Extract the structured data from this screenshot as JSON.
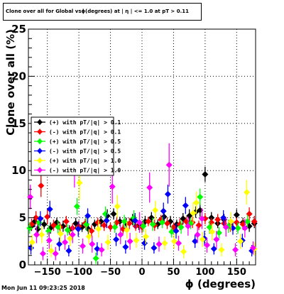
{
  "title": "Clone  over all for Global vsϕ(degrees) at | η | <= 1.0 at pT > 0.11",
  "timestamp": "Mon Jun 11 09:23:25 2018",
  "chart_data": {
    "type": "scatter",
    "xlabel": "ϕ (degrees)",
    "ylabel": "Clone  over all (%)",
    "xlim": [
      -180,
      180
    ],
    "ylim": [
      0,
      25
    ],
    "x_ticks": [
      -150,
      -100,
      -50,
      0,
      50,
      100,
      150
    ],
    "x_tick_labels": [
      "−150",
      "−100",
      "−50",
      "0",
      "50",
      "100",
      "150"
    ],
    "y_ticks": [
      0,
      5,
      10,
      15,
      20,
      25
    ],
    "grid": true,
    "legend_position": "left",
    "series": [
      {
        "name": "(+) with pT/|q| > 0.1",
        "color": "#000000",
        "marker": "diamond",
        "points": [
          [
            -175,
            4.1,
            0.5
          ],
          [
            -170,
            4.6,
            0.6
          ],
          [
            -165,
            3.8,
            0.7
          ],
          [
            -155,
            4.3,
            0.5
          ],
          [
            -145,
            3.9,
            0.6
          ],
          [
            -135,
            4.5,
            0.5
          ],
          [
            -125,
            4.1,
            0.6
          ],
          [
            -115,
            3.7,
            0.5
          ],
          [
            -105,
            4.4,
            0.6
          ],
          [
            -95,
            4.0,
            0.5
          ],
          [
            -85,
            3.8,
            0.6
          ],
          [
            -75,
            4.3,
            0.5
          ],
          [
            -65,
            4.6,
            0.6
          ],
          [
            -55,
            5.2,
            0.7
          ],
          [
            -45,
            5.4,
            0.6
          ],
          [
            -35,
            4.6,
            0.5
          ],
          [
            -25,
            4.4,
            0.6
          ],
          [
            -15,
            4.8,
            0.6
          ],
          [
            -5,
            4.2,
            0.5
          ],
          [
            5,
            4.6,
            0.6
          ],
          [
            15,
            5.0,
            0.6
          ],
          [
            25,
            4.3,
            0.5
          ],
          [
            35,
            5.1,
            0.7
          ],
          [
            45,
            4.6,
            0.6
          ],
          [
            55,
            4.3,
            0.5
          ],
          [
            65,
            4.9,
            0.6
          ],
          [
            75,
            5.2,
            0.7
          ],
          [
            85,
            5.6,
            0.6
          ],
          [
            92,
            5.8,
            0.7
          ],
          [
            100,
            9.6,
            0.8
          ],
          [
            110,
            5.0,
            0.6
          ],
          [
            120,
            4.4,
            0.5
          ],
          [
            130,
            4.8,
            0.6
          ],
          [
            140,
            4.2,
            0.5
          ],
          [
            150,
            5.3,
            0.6
          ],
          [
            160,
            4.5,
            0.5
          ],
          [
            170,
            4.1,
            0.6
          ],
          [
            178,
            4.4,
            0.5
          ]
        ]
      },
      {
        "name": "(-) with pT/|q| > 0.1",
        "color": "#ff0000",
        "marker": "diamond",
        "points": [
          [
            -175,
            4.3,
            0.6
          ],
          [
            -168,
            5.0,
            0.7
          ],
          [
            -160,
            8.4,
            1.2
          ],
          [
            -150,
            5.1,
            0.8
          ],
          [
            -140,
            4.2,
            0.6
          ],
          [
            -130,
            4.0,
            0.5
          ],
          [
            -120,
            4.6,
            0.6
          ],
          [
            -110,
            3.9,
            0.5
          ],
          [
            -100,
            4.1,
            0.6
          ],
          [
            -90,
            4.4,
            0.5
          ],
          [
            -80,
            3.6,
            0.6
          ],
          [
            -70,
            4.5,
            0.5
          ],
          [
            -60,
            4.2,
            0.6
          ],
          [
            -50,
            4.0,
            0.5
          ],
          [
            -40,
            4.5,
            0.6
          ],
          [
            -30,
            3.8,
            0.5
          ],
          [
            -20,
            4.4,
            0.6
          ],
          [
            -10,
            4.1,
            0.5
          ],
          [
            0,
            4.0,
            0.6
          ],
          [
            10,
            4.6,
            0.5
          ],
          [
            20,
            4.2,
            0.6
          ],
          [
            30,
            4.8,
            0.5
          ],
          [
            40,
            4.4,
            0.6
          ],
          [
            50,
            4.0,
            0.5
          ],
          [
            60,
            4.3,
            0.6
          ],
          [
            70,
            4.6,
            0.5
          ],
          [
            80,
            4.5,
            0.6
          ],
          [
            90,
            4.2,
            0.5
          ],
          [
            100,
            4.9,
            0.6
          ],
          [
            110,
            4.5,
            0.5
          ],
          [
            120,
            4.8,
            0.6
          ],
          [
            130,
            4.4,
            0.5
          ],
          [
            140,
            4.1,
            0.6
          ],
          [
            150,
            4.5,
            0.5
          ],
          [
            160,
            4.3,
            0.6
          ],
          [
            170,
            5.4,
            0.7
          ],
          [
            178,
            4.6,
            0.6
          ]
        ]
      },
      {
        "name": "(+) with pT/|q| > 0.5",
        "color": "#00ff00",
        "marker": "diamond",
        "points": [
          [
            -178,
            3.9,
            0.6
          ],
          [
            -163,
            4.5,
            0.7
          ],
          [
            -148,
            3.6,
            0.6
          ],
          [
            -133,
            4.0,
            0.7
          ],
          [
            -118,
            3.7,
            0.6
          ],
          [
            -103,
            6.2,
            0.9
          ],
          [
            -88,
            4.3,
            0.7
          ],
          [
            -73,
            0.7,
            0.6
          ],
          [
            -58,
            5.4,
            0.8
          ],
          [
            -43,
            4.0,
            0.6
          ],
          [
            -28,
            4.6,
            0.7
          ],
          [
            -13,
            5.0,
            0.8
          ],
          [
            2,
            4.1,
            0.6
          ],
          [
            17,
            4.3,
            0.7
          ],
          [
            32,
            4.5,
            0.6
          ],
          [
            47,
            3.5,
            0.6
          ],
          [
            62,
            4.0,
            0.7
          ],
          [
            77,
            4.4,
            0.6
          ],
          [
            92,
            7.2,
            0.9
          ],
          [
            107,
            4.0,
            0.7
          ],
          [
            122,
            3.4,
            0.6
          ],
          [
            137,
            4.1,
            0.7
          ],
          [
            152,
            3.9,
            0.6
          ],
          [
            167,
            4.6,
            0.7
          ]
        ]
      },
      {
        "name": "(-) with pT/|q| > 0.5",
        "color": "#0000ff",
        "marker": "diamond",
        "points": [
          [
            -176,
            1.8,
            0.7
          ],
          [
            -161,
            4.9,
            0.8
          ],
          [
            -146,
            5.9,
            0.9
          ],
          [
            -131,
            2.2,
            0.7
          ],
          [
            -116,
            1.5,
            0.6
          ],
          [
            -101,
            3.8,
            0.8
          ],
          [
            -86,
            5.2,
            0.8
          ],
          [
            -71,
            1.7,
            0.7
          ],
          [
            -56,
            4.7,
            0.8
          ],
          [
            -41,
            2.7,
            0.7
          ],
          [
            -26,
            1.9,
            0.7
          ],
          [
            -11,
            4.7,
            0.8
          ],
          [
            4,
            2.3,
            0.7
          ],
          [
            19,
            1.8,
            0.6
          ],
          [
            34,
            5.7,
            0.9
          ],
          [
            41,
            7.5,
            1.0
          ],
          [
            54,
            3.6,
            0.8
          ],
          [
            69,
            6.3,
            0.9
          ],
          [
            84,
            2.5,
            0.7
          ],
          [
            99,
            2.8,
            0.8
          ],
          [
            114,
            1.7,
            0.6
          ],
          [
            129,
            5.0,
            0.8
          ],
          [
            144,
            3.9,
            0.7
          ],
          [
            159,
            2.6,
            0.7
          ],
          [
            174,
            1.5,
            0.6
          ]
        ]
      },
      {
        "name": "(+) with pT/|q| > 1.0",
        "color": "#ffff00",
        "marker": "diamond",
        "points": [
          [
            -174,
            2.4,
            0.8
          ],
          [
            -159,
            3.2,
            0.9
          ],
          [
            -144,
            1.5,
            0.7
          ],
          [
            -129,
            3.3,
            0.9
          ],
          [
            -114,
            2.8,
            0.8
          ],
          [
            -99,
            8.7,
            1.8
          ],
          [
            -84,
            3.0,
            0.8
          ],
          [
            -69,
            3.8,
            0.9
          ],
          [
            -54,
            2.4,
            0.8
          ],
          [
            -39,
            6.2,
            1.2
          ],
          [
            -24,
            3.7,
            0.9
          ],
          [
            -9,
            2.6,
            0.8
          ],
          [
            6,
            3.0,
            0.8
          ],
          [
            21,
            5.8,
            1.0
          ],
          [
            36,
            2.3,
            0.7
          ],
          [
            51,
            2.5,
            0.8
          ],
          [
            66,
            1.4,
            0.7
          ],
          [
            81,
            5.5,
            1.1
          ],
          [
            86,
            6.6,
            1.2
          ],
          [
            96,
            2.7,
            0.8
          ],
          [
            111,
            3.5,
            0.9
          ],
          [
            126,
            1.6,
            0.7
          ],
          [
            141,
            4.6,
            1.0
          ],
          [
            156,
            2.5,
            0.8
          ],
          [
            166,
            7.7,
            1.3
          ],
          [
            178,
            1.7,
            0.7
          ]
        ]
      },
      {
        "name": "(-) with pT/|q| > 1.0",
        "color": "#ff00ff",
        "marker": "diamond",
        "points": [
          [
            -177,
            7.2,
            1.3
          ],
          [
            -167,
            3.2,
            0.9
          ],
          [
            -157,
            1.2,
            0.7
          ],
          [
            -147,
            2.6,
            0.9
          ],
          [
            -137,
            1.2,
            0.7
          ],
          [
            -122,
            2.4,
            0.8
          ],
          [
            -110,
            3.2,
            0.9
          ],
          [
            -107,
            10.7,
            2.5
          ],
          [
            -94,
            2.0,
            0.8
          ],
          [
            -79,
            2.2,
            0.9
          ],
          [
            -64,
            1.6,
            0.7
          ],
          [
            -47,
            8.3,
            1.8
          ],
          [
            -34,
            3.2,
            1.0
          ],
          [
            -19,
            2.5,
            0.9
          ],
          [
            -4,
            4.5,
            1.1
          ],
          [
            12,
            8.2,
            1.6
          ],
          [
            27,
            2.2,
            0.8
          ],
          [
            43,
            10.6,
            2.3
          ],
          [
            58,
            2.3,
            0.8
          ],
          [
            73,
            4.1,
            1.0
          ],
          [
            88,
            3.2,
            0.9
          ],
          [
            95,
            4.9,
            1.1
          ],
          [
            103,
            2.1,
            0.8
          ],
          [
            118,
            2.7,
            0.9
          ],
          [
            133,
            4.0,
            1.0
          ],
          [
            148,
            1.6,
            0.7
          ],
          [
            163,
            3.9,
            1.0
          ],
          [
            176,
            1.8,
            0.7
          ]
        ]
      }
    ]
  }
}
